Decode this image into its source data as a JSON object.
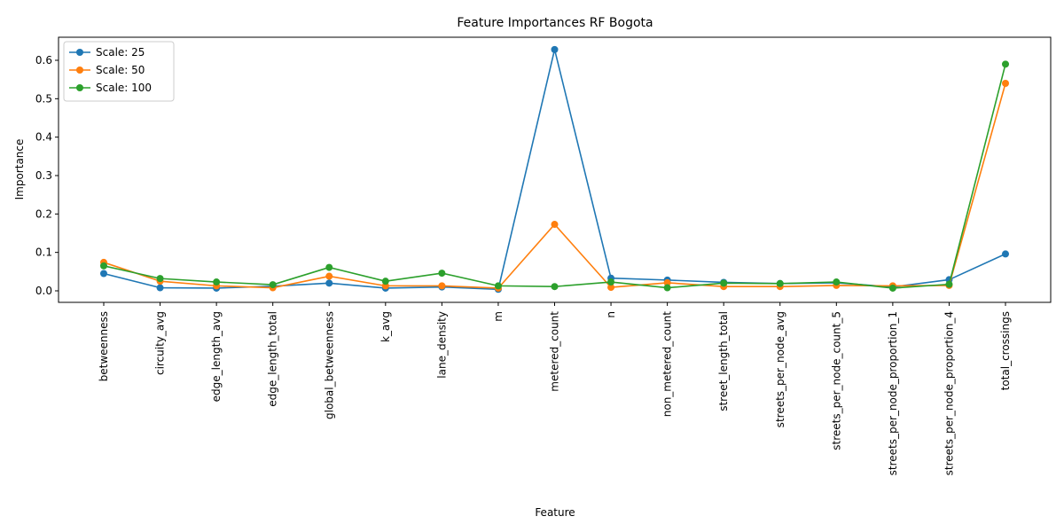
{
  "chart_data": {
    "type": "line",
    "title": "Feature Importances RF Bogota",
    "xlabel": "Feature",
    "ylabel": "Importance",
    "ylim": [
      -0.03,
      0.66
    ],
    "yticks": [
      "0.0",
      "0.1",
      "0.2",
      "0.3",
      "0.4",
      "0.5",
      "0.6"
    ],
    "grid": false,
    "legend_position": "top-left",
    "categories": [
      "betweenness",
      "circuity_avg",
      "edge_length_avg",
      "edge_length_total",
      "global_betweenness",
      "k_avg",
      "lane_density",
      "m",
      "metered_count",
      "n",
      "non_metered_count",
      "street_length_total",
      "streets_per_node_avg",
      "streets_per_node_count_5",
      "streets_per_node_proportion_1",
      "streets_per_node_proportion_4",
      "total_crossings"
    ],
    "series": [
      {
        "name": "Scale: 25",
        "color": "#1f77b4",
        "values": [
          0.045,
          0.008,
          0.007,
          0.012,
          0.02,
          0.007,
          0.01,
          0.004,
          0.628,
          0.033,
          0.028,
          0.022,
          0.019,
          0.021,
          0.01,
          0.029,
          0.096
        ]
      },
      {
        "name": "Scale: 50",
        "color": "#ff7f0e",
        "values": [
          0.074,
          0.025,
          0.013,
          0.008,
          0.038,
          0.013,
          0.013,
          0.007,
          0.173,
          0.009,
          0.021,
          0.011,
          0.011,
          0.014,
          0.013,
          0.014,
          0.54
        ]
      },
      {
        "name": "Scale: 100",
        "color": "#2ca02c",
        "values": [
          0.065,
          0.032,
          0.023,
          0.016,
          0.061,
          0.025,
          0.046,
          0.013,
          0.011,
          0.023,
          0.008,
          0.02,
          0.019,
          0.023,
          0.007,
          0.017,
          0.59
        ]
      }
    ]
  }
}
